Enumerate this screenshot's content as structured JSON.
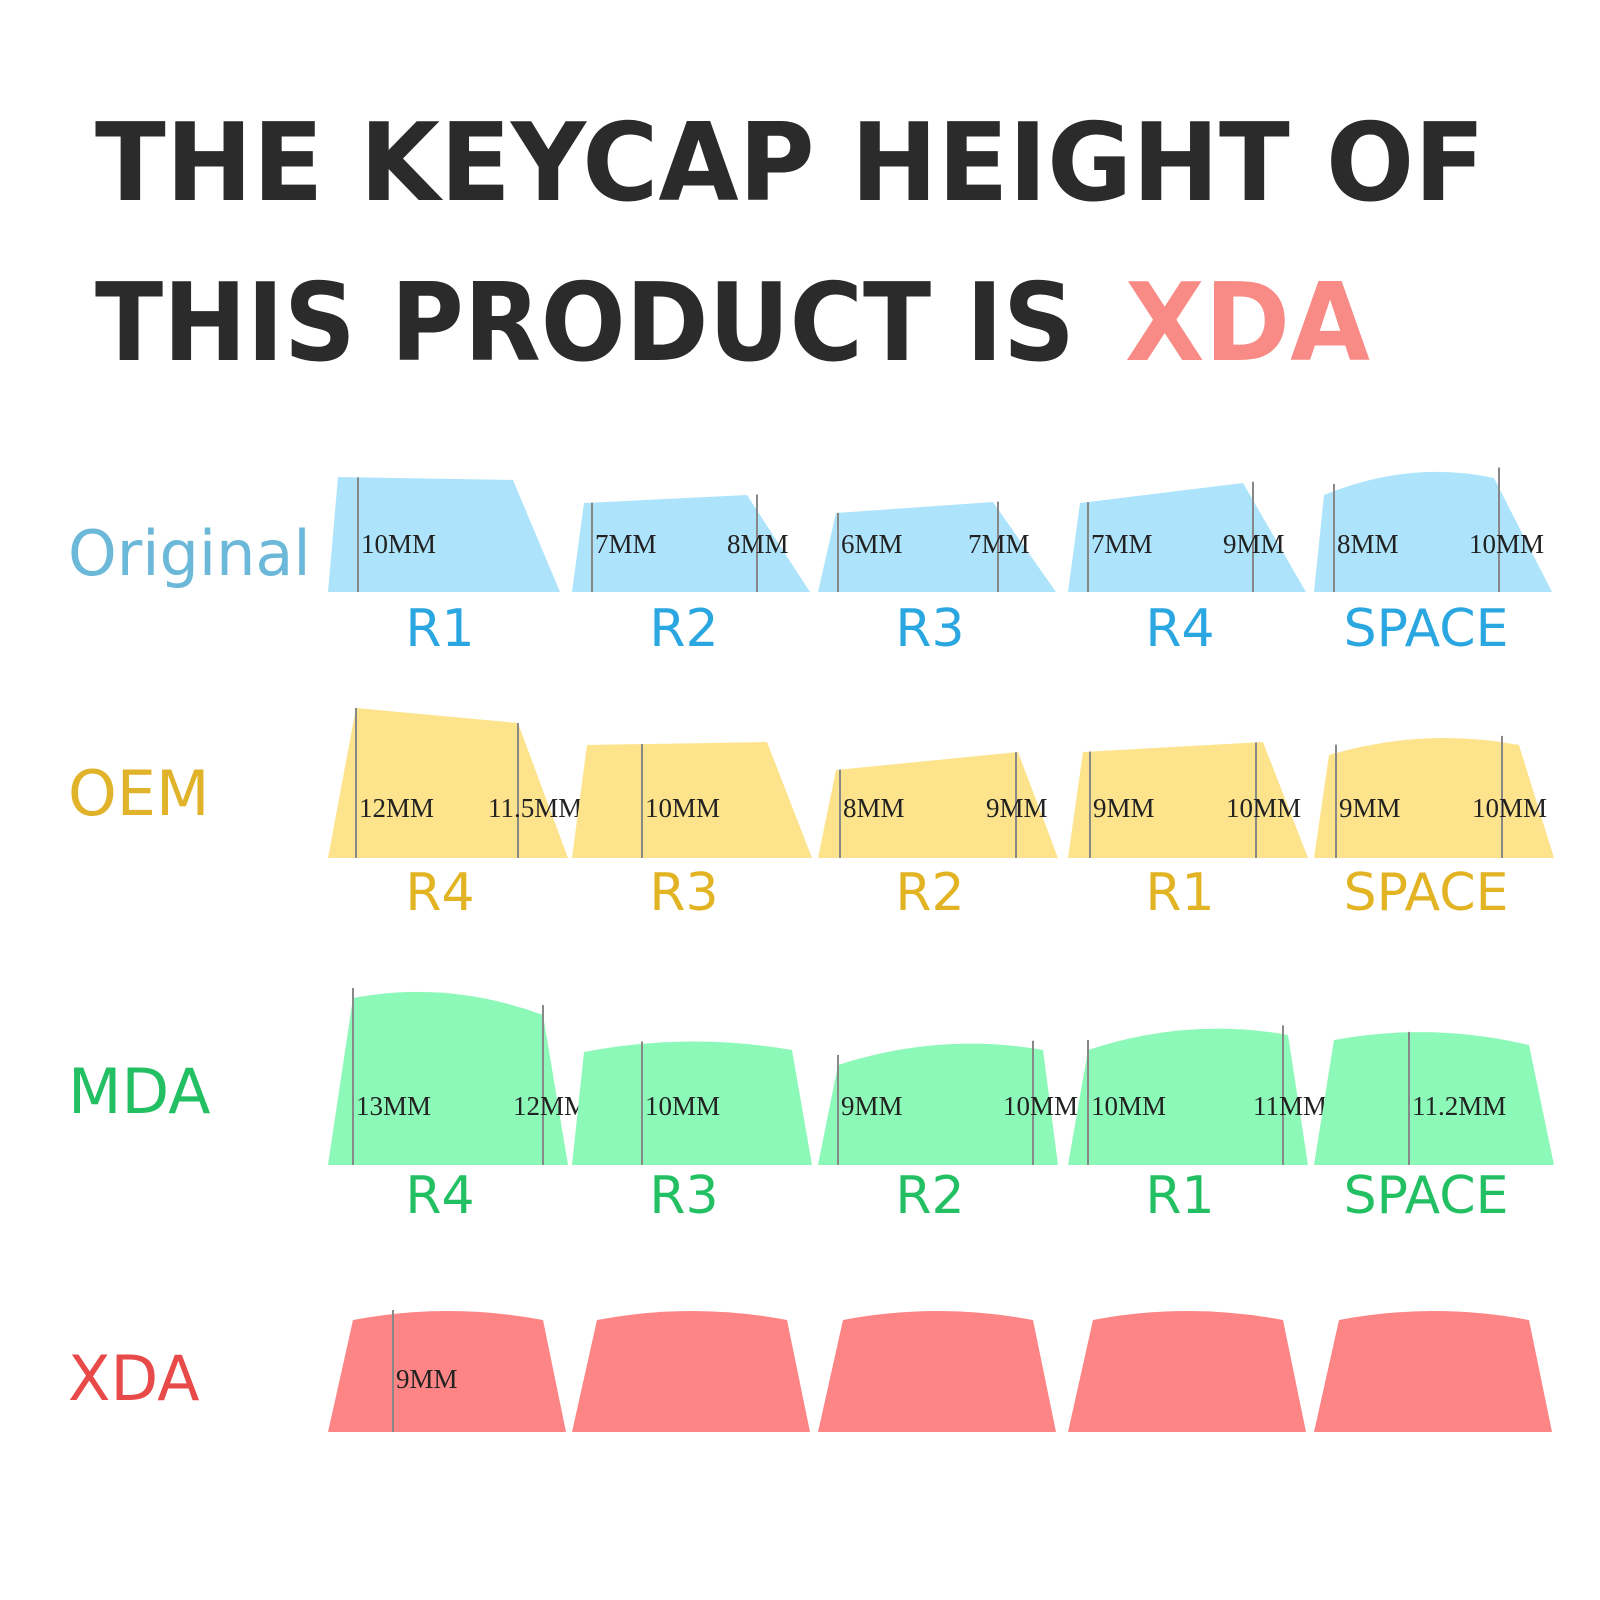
{
  "header": {
    "line1": "THE KEYCAP HEIGHT OF",
    "line2": "THIS PRODUCT IS",
    "highlight": "XDA"
  },
  "profiles": [
    {
      "name": "Original",
      "keys": [
        {
          "label": "R1",
          "measures": [
            "10MM"
          ]
        },
        {
          "label": "R2",
          "measures": [
            "7MM",
            "8MM"
          ]
        },
        {
          "label": "R3",
          "measures": [
            "6MM",
            "7MM"
          ]
        },
        {
          "label": "R4",
          "measures": [
            "7MM",
            "9MM"
          ]
        },
        {
          "label": "SPACE",
          "measures": [
            "8MM",
            "10MM"
          ]
        }
      ]
    },
    {
      "name": "OEM",
      "keys": [
        {
          "label": "R4",
          "measures": [
            "12MM",
            "11.5MM"
          ]
        },
        {
          "label": "R3",
          "measures": [
            "10MM"
          ]
        },
        {
          "label": "R2",
          "measures": [
            "8MM",
            "9MM"
          ]
        },
        {
          "label": "R1",
          "measures": [
            "9MM",
            "10MM"
          ]
        },
        {
          "label": "SPACE",
          "measures": [
            "9MM",
            "10MM"
          ]
        }
      ]
    },
    {
      "name": "MDA",
      "keys": [
        {
          "label": "R4",
          "measures": [
            "13MM",
            "12MM"
          ]
        },
        {
          "label": "R3",
          "measures": [
            "10MM"
          ]
        },
        {
          "label": "R2",
          "measures": [
            "9MM",
            "10MM"
          ]
        },
        {
          "label": "R1",
          "measures": [
            "10MM",
            "11MM"
          ]
        },
        {
          "label": "SPACE",
          "measures": [
            "11.2MM"
          ]
        }
      ]
    },
    {
      "name": "XDA",
      "keys": [
        {
          "measures": [
            "9MM"
          ]
        },
        {
          "measures": []
        },
        {
          "measures": []
        },
        {
          "measures": []
        },
        {
          "measures": []
        }
      ]
    }
  ]
}
